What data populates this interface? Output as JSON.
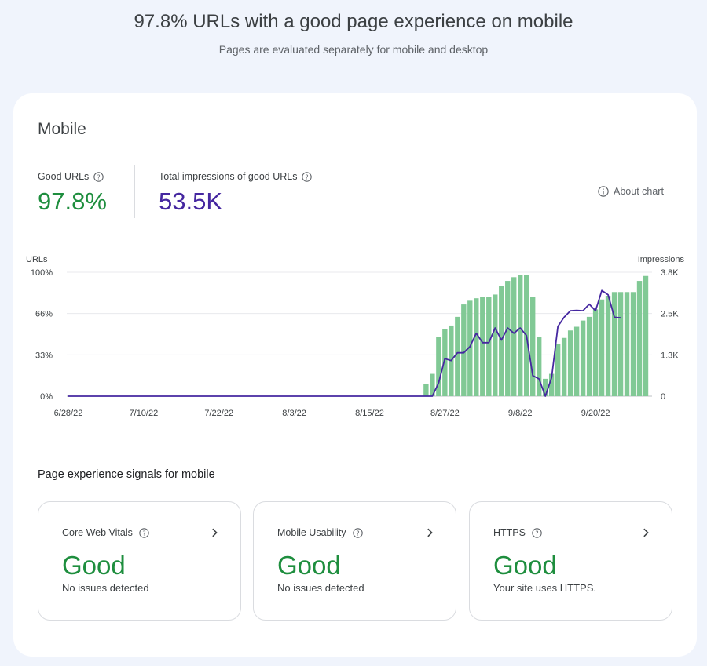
{
  "header": {
    "title": "97.8% URLs with a good page experience on mobile",
    "subtitle": "Pages are evaluated separately for mobile and desktop"
  },
  "card": {
    "title": "Mobile",
    "metrics": {
      "good_urls_label": "Good URLs",
      "good_urls_value": "97.8%",
      "impressions_label": "Total impressions of good URLs",
      "impressions_value": "53.5K"
    },
    "about_chart": "About chart",
    "icons": {
      "help": "help-circle-icon",
      "info": "info-icon",
      "chevron": "chevron-right-icon"
    }
  },
  "colors": {
    "good_green": "#1e8e3e",
    "bar_green": "#81c995",
    "impressions_purple": "#4527a0",
    "background": "#f0f4fc"
  },
  "chart_data": {
    "type": "bar",
    "ylabel": "URLs",
    "y2label": "Impressions",
    "ylim": [
      0,
      100
    ],
    "y2lim": [
      0,
      3800
    ],
    "y_ticks": [
      "100%",
      "66%",
      "33%",
      "0%"
    ],
    "y2_ticks": [
      "3.8K",
      "2.5K",
      "1.3K",
      "0"
    ],
    "x_ticks": [
      "6/28/22",
      "7/10/22",
      "7/22/22",
      "8/3/22",
      "8/15/22",
      "8/27/22",
      "9/8/22",
      "9/20/22"
    ],
    "grid": true,
    "series": [
      {
        "name": "Good URLs",
        "kind": "bar",
        "values": [
          0,
          0,
          0,
          0,
          0,
          0,
          0,
          0,
          0,
          0,
          0,
          0,
          0,
          0,
          0,
          0,
          0,
          0,
          0,
          0,
          0,
          0,
          0,
          0,
          0,
          0,
          0,
          0,
          0,
          0,
          0,
          0,
          0,
          0,
          0,
          0,
          0,
          0,
          0,
          0,
          0,
          0,
          0,
          0,
          0,
          0,
          0,
          0,
          0,
          0,
          0,
          0,
          0,
          0,
          0,
          0,
          0,
          10,
          18,
          48,
          54,
          57,
          64,
          74,
          77,
          79,
          80,
          80,
          82,
          89,
          93,
          96,
          98,
          98,
          80,
          48,
          14,
          18,
          42,
          47,
          53,
          56,
          61,
          64,
          70,
          78,
          81,
          84,
          84,
          84,
          84,
          93,
          97
        ]
      },
      {
        "name": "Impressions",
        "kind": "line",
        "values": [
          0,
          0,
          0,
          0,
          0,
          0,
          0,
          0,
          0,
          0,
          0,
          0,
          0,
          0,
          0,
          0,
          0,
          0,
          0,
          0,
          0,
          0,
          0,
          0,
          0,
          0,
          0,
          0,
          0,
          0,
          0,
          0,
          0,
          0,
          0,
          0,
          0,
          0,
          0,
          0,
          0,
          0,
          0,
          0,
          0,
          0,
          0,
          0,
          0,
          0,
          0,
          0,
          0,
          0,
          0,
          0,
          0,
          0,
          0,
          410,
          1150,
          1090,
          1330,
          1330,
          1520,
          1930,
          1640,
          1640,
          2090,
          1720,
          2090,
          1930,
          2090,
          1860,
          630,
          530,
          0,
          570,
          2140,
          2420,
          2620,
          2630,
          2620,
          2820,
          2620,
          3240,
          3110,
          2420,
          2400
        ]
      }
    ]
  },
  "signals": {
    "title": "Page experience signals for mobile",
    "items": [
      {
        "label": "Core Web Vitals",
        "status": "Good",
        "description": "No issues detected"
      },
      {
        "label": "Mobile Usability",
        "status": "Good",
        "description": "No issues detected"
      },
      {
        "label": "HTTPS",
        "status": "Good",
        "description": "Your site uses HTTPS."
      }
    ]
  }
}
